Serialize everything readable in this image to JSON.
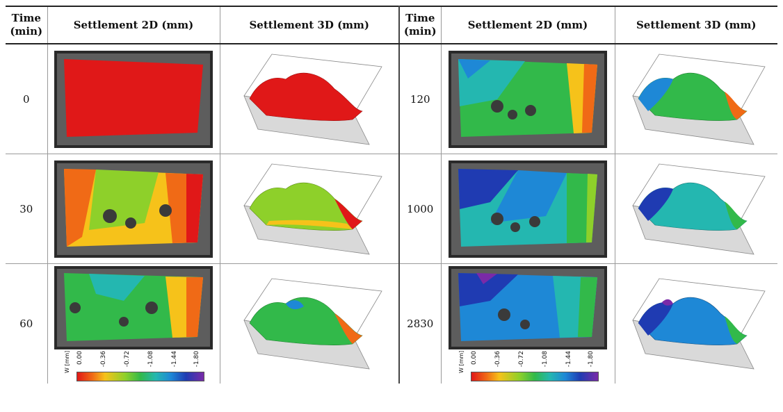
{
  "table": {
    "headers": [
      "Time\n(min)",
      "Settlement 2D (mm)",
      "Settlement 3D (mm)",
      "Time\n(min)",
      "Settlement 2D (mm)",
      "Settlement 3D (mm)"
    ],
    "rows": [
      {
        "left_time": "0",
        "right_time": "120"
      },
      {
        "left_time": "30",
        "right_time": "1000"
      },
      {
        "left_time": "60",
        "right_time": "2830"
      }
    ]
  },
  "legend": {
    "label": "W [mm]",
    "ticks": [
      "0.00",
      "-0.36",
      "-0.72",
      "-1.08",
      "-1.44",
      "-1.80"
    ]
  },
  "colors": {
    "red": "#e01818",
    "orange": "#f06a16",
    "yellow": "#f6c21a",
    "green": "#32b94a",
    "cyan": "#24b7b0",
    "blue": "#1e88d6",
    "navy": "#1f3bb2",
    "purple": "#7a2aa8",
    "speckle": "#3a3a3a"
  }
}
